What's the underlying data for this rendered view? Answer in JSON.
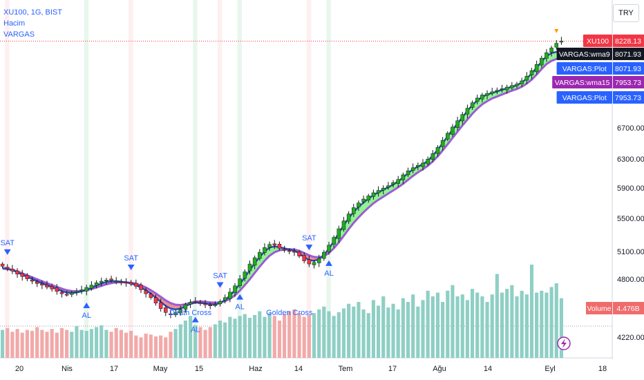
{
  "legend": {
    "symbol": "XU100, 1G, BIST",
    "hacim": "Hacim",
    "indicator": "VARGAS"
  },
  "currency": "TRY",
  "colors": {
    "up": "#22ab1f",
    "down": "#f23645",
    "ema_fast": "#2b4ea9",
    "ema_slow": "#9c5cd2",
    "fill_up": "#7ff07f",
    "fill_down": "#e87b85",
    "vol_up": "#8fcfc5",
    "vol_down": "#f2a9a9",
    "signal": "#2962ff",
    "volume_label": "#f06b6b"
  },
  "chart_data": {
    "type": "candlestick",
    "title": "XU100, 1G, BIST",
    "x_ticks": [
      "20",
      "Nis",
      "17",
      "May",
      "15",
      "Haz",
      "14",
      "Tem",
      "17",
      "Ağu",
      "14",
      "Eyl",
      "18"
    ],
    "y_ticks": [
      "6700.00",
      "6300.00",
      "5900.00",
      "5500.00",
      "5100.00",
      "4800.00",
      "4220.00"
    ],
    "price_range": [
      4180,
      8400
    ],
    "price_labels": [
      {
        "name": "XU100",
        "value": "8228.13",
        "color": "#f23645"
      },
      {
        "name": "VARGAS:wma9",
        "value": "8071.93",
        "color": "#131722"
      },
      {
        "name": "VARGAS:Plot",
        "value": "8071.93",
        "color": "#2962ff"
      },
      {
        "name": "VARGAS:wma15",
        "value": "7953.73",
        "color": "#9c27b0"
      },
      {
        "name": "VARGAS:Plot",
        "value": "7953.73",
        "color": "#2962ff"
      }
    ],
    "volume_label": {
      "name": "Volume",
      "value": "4.476B"
    },
    "signals": [
      {
        "text": "SAT",
        "type": "sell",
        "i": 1
      },
      {
        "text": "AL",
        "type": "buy",
        "i": 17
      },
      {
        "text": "SAT",
        "type": "sell",
        "i": 26
      },
      {
        "text": "AL",
        "type": "buy",
        "i": 39
      },
      {
        "text": "SAT",
        "type": "sell",
        "i": 44
      },
      {
        "text": "AL",
        "type": "buy",
        "i": 48
      },
      {
        "text": "SAT",
        "type": "sell",
        "i": 62
      },
      {
        "text": "AL",
        "type": "buy",
        "i": 66
      }
    ],
    "annotations": [
      {
        "text": "Death Cross",
        "i": 38
      },
      {
        "text": "Golden Cross",
        "i": 58
      }
    ],
    "close": [
      5350,
      5320,
      5290,
      5250,
      5220,
      5190,
      5160,
      5130,
      5110,
      5085,
      5060,
      5030,
      5000,
      4990,
      5010,
      5030,
      5050,
      5080,
      5110,
      5140,
      5160,
      5175,
      5170,
      5160,
      5150,
      5140,
      5125,
      5095,
      5050,
      5000,
      4950,
      4880,
      4810,
      4760,
      4740,
      4760,
      4800,
      4860,
      4890,
      4900,
      4880,
      4860,
      4850,
      4860,
      4900,
      4950,
      5020,
      5100,
      5190,
      5280,
      5380,
      5460,
      5530,
      5590,
      5630,
      5620,
      5580,
      5560,
      5545,
      5530,
      5480,
      5420,
      5380,
      5400,
      5450,
      5530,
      5620,
      5720,
      5830,
      5930,
      6020,
      6100,
      6160,
      6210,
      6250,
      6290,
      6320,
      6350,
      6380,
      6420,
      6460,
      6520,
      6570,
      6610,
      6640,
      6670,
      6720,
      6790,
      6870,
      6960,
      7050,
      7130,
      7210,
      7290,
      7370,
      7440,
      7500,
      7540,
      7560,
      7580,
      7600,
      7620,
      7640,
      7660,
      7680,
      7720,
      7780,
      7850,
      7930,
      8010,
      8080,
      8140,
      8200,
      8228
    ],
    "ema_fast": [
      5330,
      5320,
      5300,
      5275,
      5245,
      5215,
      5190,
      5160,
      5135,
      5110,
      5085,
      5060,
      5035,
      5015,
      5010,
      5015,
      5030,
      5050,
      5075,
      5105,
      5130,
      5150,
      5160,
      5160,
      5155,
      5145,
      5130,
      5110,
      5080,
      5045,
      5000,
      4950,
      4895,
      4845,
      4810,
      4800,
      4810,
      4840,
      4870,
      4885,
      4885,
      4875,
      4865,
      4862,
      4880,
      4920,
      4975,
      5045,
      5125,
      5210,
      5300,
      5390,
      5470,
      5540,
      5590,
      5605,
      5595,
      5580,
      5565,
      5550,
      5515,
      5470,
      5430,
      5420,
      5440,
      5495,
      5575,
      5670,
      5775,
      5875,
      5965,
      6045,
      6110,
      6165,
      6215,
      6260,
      6295,
      6330,
      6360,
      6395,
      6435,
      6485,
      6540,
      6590,
      6625,
      6655,
      6700,
      6765,
      6840,
      6925,
      7010,
      7095,
      7175,
      7255,
      7335,
      7410,
      7470,
      7515,
      7545,
      7565,
      7585,
      7605,
      7625,
      7645,
      7665,
      7700,
      7750,
      7815,
      7890,
      7965,
      8035,
      8075,
      8090,
      8100
    ],
    "ema_slow": [
      5320,
      5315,
      5305,
      5285,
      5260,
      5235,
      5210,
      5185,
      5160,
      5135,
      5110,
      5088,
      5065,
      5045,
      5035,
      5030,
      5035,
      5045,
      5060,
      5080,
      5100,
      5120,
      5135,
      5145,
      5148,
      5146,
      5140,
      5128,
      5108,
      5080,
      5045,
      5005,
      4960,
      4915,
      4880,
      4860,
      4855,
      4865,
      4885,
      4898,
      4902,
      4898,
      4890,
      4885,
      4890,
      4905,
      4935,
      4980,
      5040,
      5110,
      5185,
      5265,
      5345,
      5420,
      5485,
      5530,
      5555,
      5565,
      5568,
      5565,
      5548,
      5520,
      5490,
      5470,
      5465,
      5480,
      5520,
      5580,
      5655,
      5740,
      5825,
      5905,
      5975,
      6040,
      6100,
      6155,
      6200,
      6240,
      6280,
      6320,
      6360,
      6405,
      6455,
      6505,
      6550,
      6590,
      6635,
      6690,
      6755,
      6830,
      6910,
      6990,
      7070,
      7150,
      7225,
      7300,
      7365,
      7420,
      7460,
      7495,
      7520,
      7545,
      7570,
      7595,
      7615,
      7645,
      7685,
      7735,
      7800,
      7870,
      7935,
      7975,
      8000,
      8020
    ],
    "volume": [
      0.3,
      0.32,
      0.28,
      0.31,
      0.27,
      0.3,
      0.29,
      0.33,
      0.3,
      0.28,
      0.31,
      0.27,
      0.32,
      0.3,
      0.28,
      0.34,
      0.3,
      0.29,
      0.31,
      0.33,
      0.35,
      0.3,
      0.28,
      0.32,
      0.3,
      0.27,
      0.29,
      0.24,
      0.22,
      0.26,
      0.25,
      0.23,
      0.24,
      0.22,
      0.28,
      0.31,
      0.36,
      0.4,
      0.45,
      0.35,
      0.33,
      0.3,
      0.33,
      0.36,
      0.4,
      0.38,
      0.44,
      0.42,
      0.45,
      0.47,
      0.43,
      0.46,
      0.5,
      0.44,
      0.48,
      0.45,
      0.4,
      0.47,
      0.5,
      0.52,
      0.48,
      0.44,
      0.46,
      0.48,
      0.52,
      0.55,
      0.5,
      0.45,
      0.49,
      0.53,
      0.58,
      0.55,
      0.6,
      0.52,
      0.48,
      0.62,
      0.56,
      0.66,
      0.54,
      0.58,
      0.52,
      0.64,
      0.6,
      0.68,
      0.55,
      0.62,
      0.72,
      0.66,
      0.7,
      0.6,
      0.72,
      0.78,
      0.66,
      0.68,
      0.62,
      0.74,
      0.7,
      0.66,
      0.6,
      0.68,
      0.9,
      0.7,
      0.74,
      0.78,
      0.66,
      0.72,
      0.68,
      1.0,
      0.7,
      0.72,
      0.7,
      0.76,
      0.8,
      0.64
    ]
  }
}
